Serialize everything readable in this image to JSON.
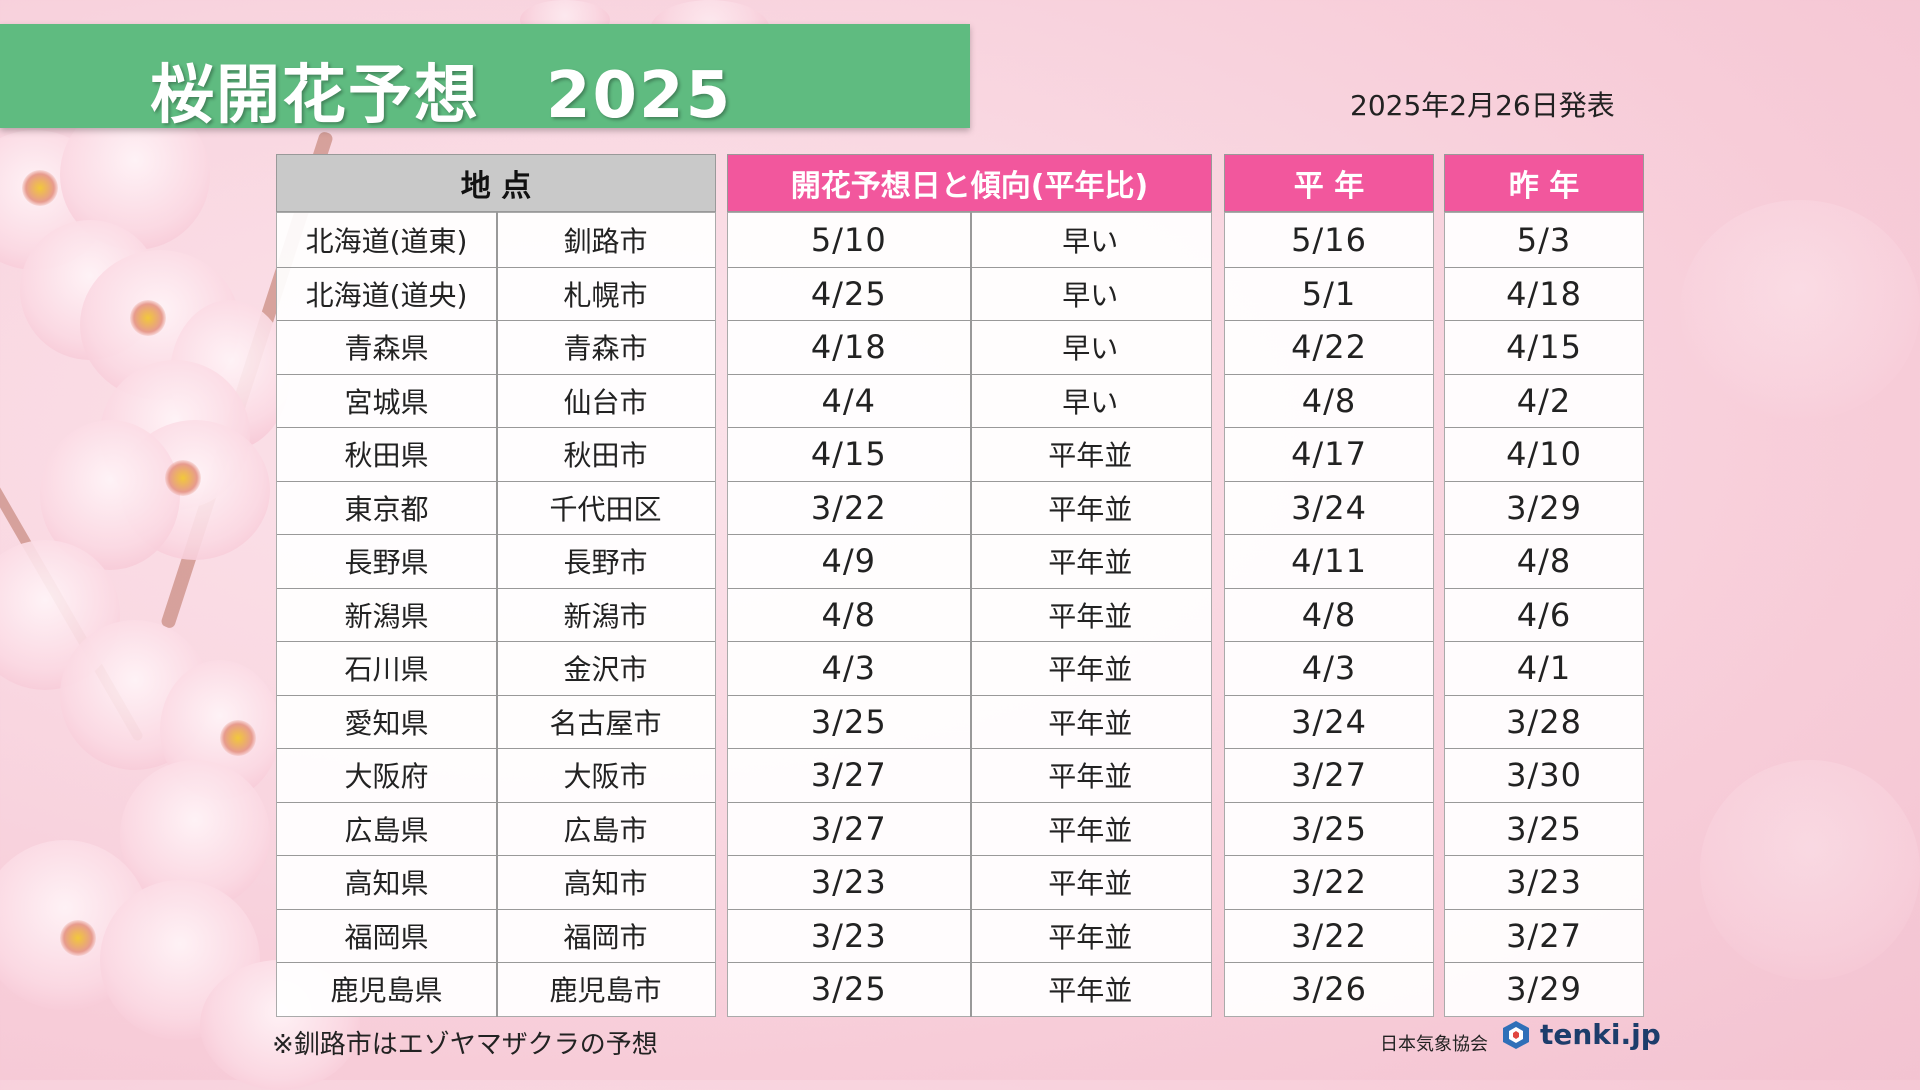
{
  "title": "桜開花予想　2025",
  "announce_date": "2025年2月26日発表",
  "headers": {
    "location": "地 点",
    "forecast": "開花予想日と傾向(平年比)",
    "normal": "平 年",
    "last_year": "昨 年"
  },
  "rows": [
    {
      "region": "北海道(道東)",
      "city": "釧路市",
      "date": "5/10",
      "trend": "早い",
      "normal": "5/16",
      "last": "5/3"
    },
    {
      "region": "北海道(道央)",
      "city": "札幌市",
      "date": "4/25",
      "trend": "早い",
      "normal": "5/1",
      "last": "4/18"
    },
    {
      "region": "青森県",
      "city": "青森市",
      "date": "4/18",
      "trend": "早い",
      "normal": "4/22",
      "last": "4/15"
    },
    {
      "region": "宮城県",
      "city": "仙台市",
      "date": "4/4",
      "trend": "早い",
      "normal": "4/8",
      "last": "4/2"
    },
    {
      "region": "秋田県",
      "city": "秋田市",
      "date": "4/15",
      "trend": "平年並",
      "normal": "4/17",
      "last": "4/10"
    },
    {
      "region": "東京都",
      "city": "千代田区",
      "date": "3/22",
      "trend": "平年並",
      "normal": "3/24",
      "last": "3/29"
    },
    {
      "region": "長野県",
      "city": "長野市",
      "date": "4/9",
      "trend": "平年並",
      "normal": "4/11",
      "last": "4/8"
    },
    {
      "region": "新潟県",
      "city": "新潟市",
      "date": "4/8",
      "trend": "平年並",
      "normal": "4/8",
      "last": "4/6"
    },
    {
      "region": "石川県",
      "city": "金沢市",
      "date": "4/3",
      "trend": "平年並",
      "normal": "4/3",
      "last": "4/1"
    },
    {
      "region": "愛知県",
      "city": "名古屋市",
      "date": "3/25",
      "trend": "平年並",
      "normal": "3/24",
      "last": "3/28"
    },
    {
      "region": "大阪府",
      "city": "大阪市",
      "date": "3/27",
      "trend": "平年並",
      "normal": "3/27",
      "last": "3/30"
    },
    {
      "region": "広島県",
      "city": "広島市",
      "date": "3/27",
      "trend": "平年並",
      "normal": "3/25",
      "last": "3/25"
    },
    {
      "region": "高知県",
      "city": "高知市",
      "date": "3/23",
      "trend": "平年並",
      "normal": "3/22",
      "last": "3/23"
    },
    {
      "region": "福岡県",
      "city": "福岡市",
      "date": "3/23",
      "trend": "平年並",
      "normal": "3/22",
      "last": "3/27"
    },
    {
      "region": "鹿児島県",
      "city": "鹿児島市",
      "date": "3/25",
      "trend": "平年並",
      "normal": "3/26",
      "last": "3/29"
    }
  ],
  "note": "※釧路市はエゾヤマザクラの予想",
  "footer": {
    "org": "日本気象協会",
    "logo_text": "tenki.jp",
    "logo_icon": "tenki-logo-icon"
  },
  "colors": {
    "title_bg": "#5fbb80",
    "header_pink": "#f2579d",
    "header_gray": "#c9c9c9"
  }
}
